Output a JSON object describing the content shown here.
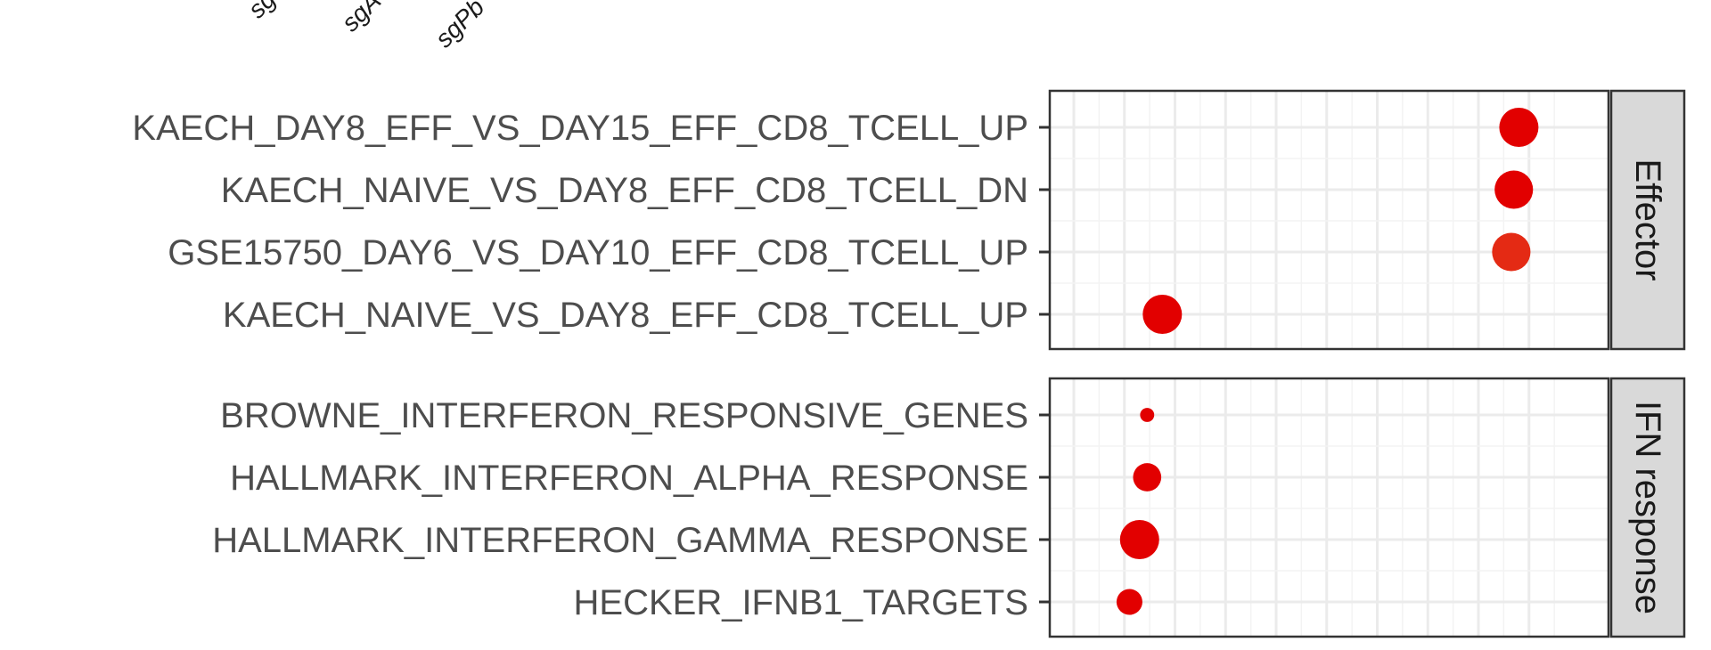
{
  "chart_data": {
    "type": "scatter",
    "title": "",
    "xlabel": "",
    "ylabel": "",
    "x_categories": [
      "sg",
      "sgA",
      "sgPb"
    ],
    "grid": true,
    "legend": "none",
    "point_color": "#e00000",
    "facets": [
      {
        "name": "Effector",
        "rows": [
          {
            "label": "KAECH_DAY8_EFF_VS_DAY15_EFF_CD8_TCELL_UP",
            "points": [
              {
                "col": 8.8,
                "size": 1.0,
                "color": "#e20000"
              }
            ]
          },
          {
            "label": "KAECH_NAIVE_VS_DAY8_EFF_CD8_TCELL_DN",
            "points": [
              {
                "col": 8.7,
                "size": 0.98,
                "color": "#e20000"
              }
            ]
          },
          {
            "label": "GSE15750_DAY6_VS_DAY10_EFF_CD8_TCELL_UP",
            "points": [
              {
                "col": 8.65,
                "size": 0.98,
                "color": "#e42a14"
              }
            ]
          },
          {
            "label": "KAECH_NAIVE_VS_DAY8_EFF_CD8_TCELL_UP",
            "points": [
              {
                "col": 1.75,
                "size": 1.0,
                "color": "#e20000"
              }
            ]
          }
        ]
      },
      {
        "name": "IFN response",
        "rows": [
          {
            "label": "BROWNE_INTERFERON_RESPONSIVE_GENES",
            "points": [
              {
                "col": 1.45,
                "size": 0.36,
                "color": "#e20000"
              }
            ]
          },
          {
            "label": "HALLMARK_INTERFERON_ALPHA_RESPONSE",
            "points": [
              {
                "col": 1.45,
                "size": 0.72,
                "color": "#e20000"
              }
            ]
          },
          {
            "label": "HALLMARK_INTERFERON_GAMMA_RESPONSE",
            "points": [
              {
                "col": 1.3,
                "size": 1.0,
                "color": "#e20000"
              }
            ]
          },
          {
            "label": "HECKER_IFNB1_TARGETS",
            "points": [
              {
                "col": 1.1,
                "size": 0.66,
                "color": "#e20000"
              }
            ]
          }
        ]
      }
    ]
  }
}
